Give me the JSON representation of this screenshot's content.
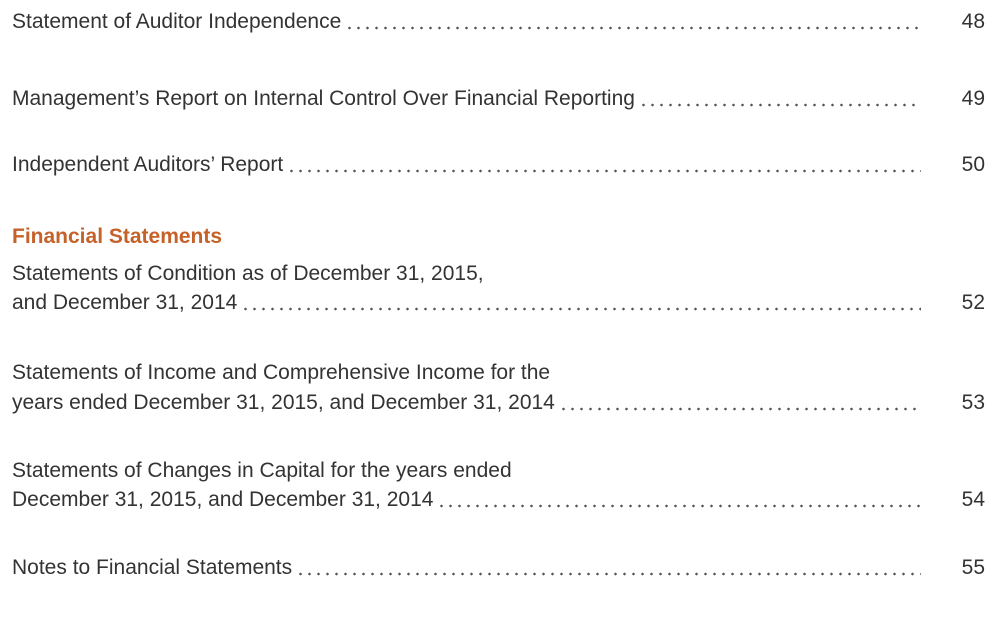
{
  "sections": [
    {
      "entries": [
        {
          "lines": [
            "Statement of Auditor Independence"
          ],
          "page": 48
        },
        {
          "lines": [
            "Management’s Report on Internal Control Over Financial Reporting"
          ],
          "page": 49
        },
        {
          "lines": [
            "Independent Auditors’ Report"
          ],
          "page": 50
        }
      ]
    },
    {
      "heading": "Financial Statements",
      "entries": [
        {
          "lines": [
            "Statements of Condition as of December 31, 2015,",
            "and December 31, 2014"
          ],
          "page": 52
        },
        {
          "lines": [
            "Statements of Income and Comprehensive Income for the",
            "years ended December 31, 2015, and December 31, 2014"
          ],
          "page": 53
        },
        {
          "lines": [
            "Statements of Changes in Capital for the years ended",
            "December 31, 2015, and December 31, 2014"
          ],
          "page": 54
        },
        {
          "lines": [
            "Notes to Financial Statements"
          ],
          "page": 55
        }
      ]
    }
  ]
}
